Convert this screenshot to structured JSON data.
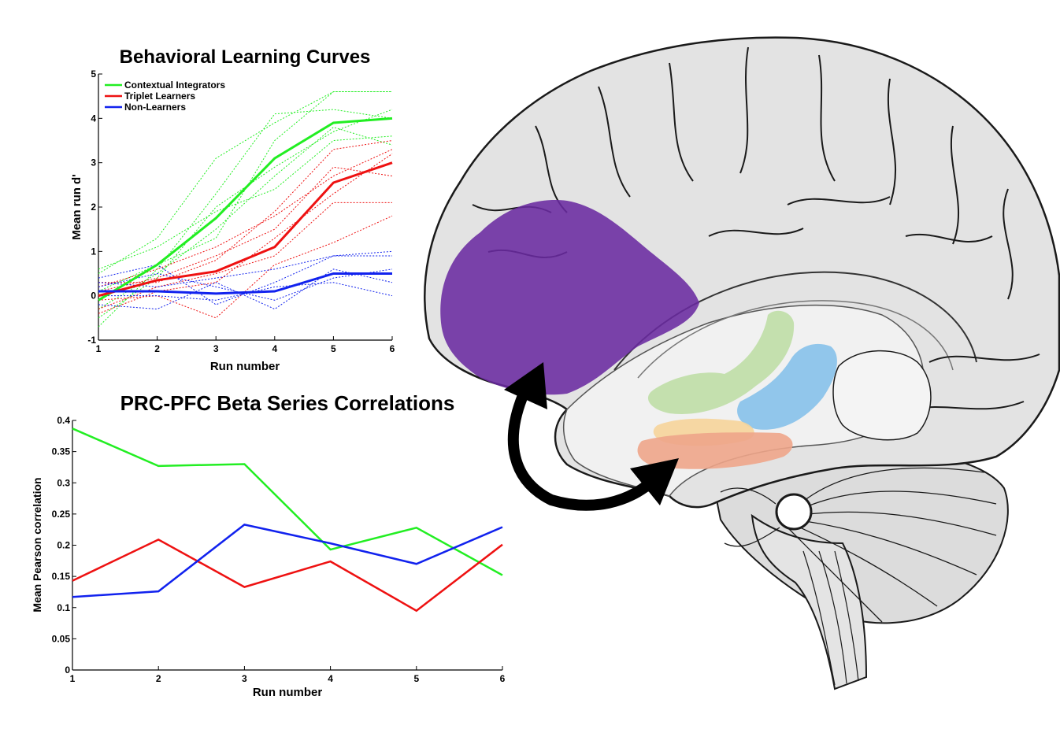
{
  "colors": {
    "green": "#22ee22",
    "red": "#ee1111",
    "blue": "#1122ee",
    "purple": "#6a2aa0",
    "brain_fill": "#e6e6e6",
    "brain_line": "#1a1a1a"
  },
  "chart_data": [
    {
      "type": "line",
      "title": "Behavioral Learning Curves",
      "xlabel": "Run number",
      "ylabel": "Mean run d'",
      "xlim": [
        1,
        6
      ],
      "ylim": [
        -1,
        5
      ],
      "x_ticks": [
        "1",
        "2",
        "3",
        "4",
        "5",
        "6"
      ],
      "y_ticks": [
        "-1",
        "0",
        "1",
        "2",
        "3",
        "4",
        "5"
      ],
      "grid": false,
      "legend_position": "top-left",
      "x": [
        1,
        2,
        3,
        4,
        5,
        6
      ],
      "series": [
        {
          "name": "Contextual Integrators",
          "color": "#22ee22",
          "style": "mean",
          "values": [
            -0.1,
            0.7,
            1.75,
            3.1,
            3.9,
            4.0
          ]
        },
        {
          "name": "Triplet Learners",
          "color": "#ee1111",
          "style": "mean",
          "values": [
            0.0,
            0.35,
            0.55,
            1.1,
            2.55,
            3.0
          ]
        },
        {
          "name": "Non-Learners",
          "color": "#1122ee",
          "style": "mean",
          "values": [
            0.1,
            0.1,
            0.05,
            0.1,
            0.5,
            0.5
          ]
        }
      ],
      "individual_series": [
        {
          "color": "#22ee22",
          "values": [
            -0.7,
            0.6,
            2.3,
            4.1,
            4.2,
            4.0
          ]
        },
        {
          "color": "#22ee22",
          "values": [
            0.5,
            1.3,
            3.1,
            3.9,
            4.6,
            4.6
          ]
        },
        {
          "color": "#22ee22",
          "values": [
            -0.3,
            0.5,
            1.5,
            2.7,
            3.8,
            3.4
          ]
        },
        {
          "color": "#22ee22",
          "values": [
            0.1,
            0.7,
            1.3,
            3.5,
            4.6,
            4.6
          ]
        },
        {
          "color": "#22ee22",
          "values": [
            -0.5,
            0.4,
            2.0,
            2.9,
            3.7,
            4.2
          ]
        },
        {
          "color": "#22ee22",
          "values": [
            0.6,
            1.1,
            1.9,
            2.4,
            3.5,
            3.6
          ]
        },
        {
          "color": "#ee1111",
          "values": [
            0.3,
            0.3,
            0.8,
            1.9,
            3.3,
            3.5
          ]
        },
        {
          "color": "#ee1111",
          "values": [
            -0.3,
            0.2,
            0.5,
            0.9,
            2.1,
            2.1
          ]
        },
        {
          "color": "#ee1111",
          "values": [
            0.2,
            0.6,
            1.1,
            1.8,
            2.7,
            3.3
          ]
        },
        {
          "color": "#ee1111",
          "values": [
            -0.1,
            0.0,
            -0.5,
            0.7,
            1.2,
            1.8
          ]
        },
        {
          "color": "#ee1111",
          "values": [
            0.1,
            0.4,
            0.9,
            1.5,
            2.9,
            2.7
          ]
        },
        {
          "color": "#ee1111",
          "values": [
            -0.4,
            0.1,
            0.3,
            1.3,
            2.3,
            3.2
          ]
        },
        {
          "color": "#1122ee",
          "values": [
            0.4,
            0.7,
            -0.2,
            0.3,
            0.9,
            1.0
          ]
        },
        {
          "color": "#1122ee",
          "values": [
            -0.2,
            -0.3,
            0.3,
            -0.3,
            0.6,
            0.3
          ]
        },
        {
          "color": "#1122ee",
          "values": [
            0.3,
            0.2,
            0.4,
            0.6,
            0.9,
            0.9
          ]
        },
        {
          "color": "#1122ee",
          "values": [
            0.0,
            0.0,
            -0.1,
            0.2,
            0.3,
            0.0
          ]
        },
        {
          "color": "#1122ee",
          "values": [
            0.2,
            0.5,
            0.2,
            -0.1,
            0.4,
            0.6
          ]
        }
      ]
    },
    {
      "type": "line",
      "title": "PRC-PFC Beta Series Correlations",
      "xlabel": "Run number",
      "ylabel": "Mean Pearson correlation",
      "xlim": [
        1,
        6
      ],
      "ylim": [
        0,
        0.4
      ],
      "x_ticks": [
        "1",
        "2",
        "3",
        "4",
        "5",
        "6"
      ],
      "y_ticks": [
        "0",
        "0.05",
        "0.1",
        "0.15",
        "0.2",
        "0.25",
        "0.3",
        "0.35",
        "0.4"
      ],
      "grid": false,
      "x": [
        1,
        2,
        3,
        4,
        5,
        6
      ],
      "series": [
        {
          "color": "#22ee22",
          "values": [
            0.387,
            0.327,
            0.33,
            0.193,
            0.228,
            0.152
          ]
        },
        {
          "color": "#ee1111",
          "values": [
            0.143,
            0.209,
            0.133,
            0.174,
            0.095,
            0.201
          ]
        },
        {
          "color": "#1122ee",
          "values": [
            0.117,
            0.126,
            0.233,
            0.203,
            0.17,
            0.229
          ]
        }
      ]
    }
  ]
}
